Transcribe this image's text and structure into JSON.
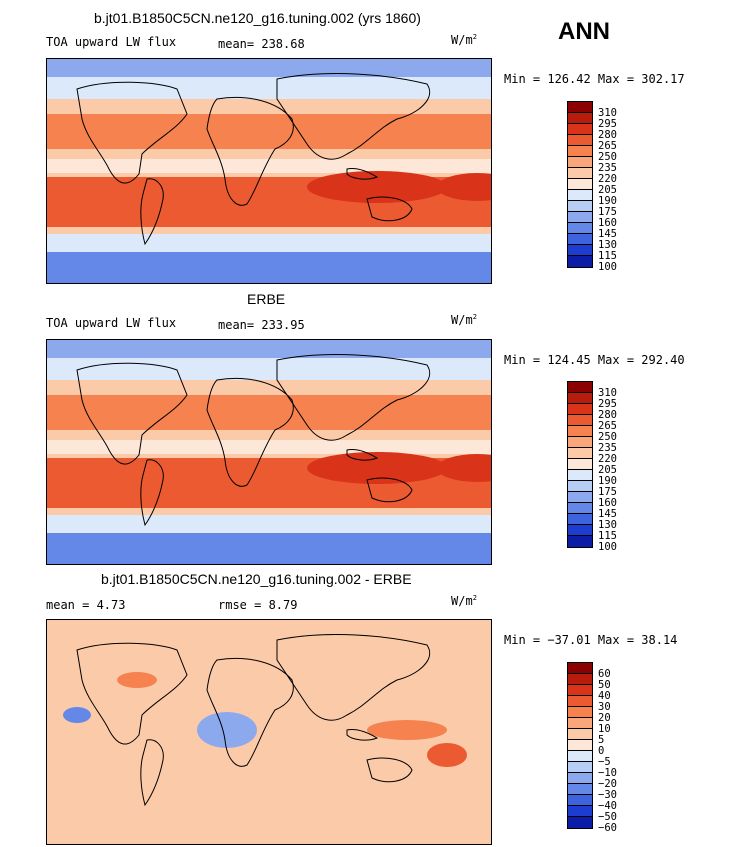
{
  "season": "ANN",
  "panels": [
    {
      "title": "b.jt01.B1850C5CN.ne120_g16.tuning.002 (yrs 1860)",
      "left_text": "TOA upward LW flux",
      "mid_text": "mean= 238.68",
      "units": "W/m",
      "units_sup": "2",
      "minmax": "Min = 126.42 Max = 302.17",
      "levels": [
        "310",
        "295",
        "280",
        "265",
        "250",
        "235",
        "220",
        "205",
        "190",
        "175",
        "160",
        "145",
        "130",
        "115",
        "100"
      ]
    },
    {
      "title": "ERBE",
      "left_text": "TOA upward LW flux",
      "mid_text": "mean= 233.95",
      "units": "W/m",
      "units_sup": "2",
      "minmax": "Min = 124.45 Max = 292.40",
      "levels": [
        "310",
        "295",
        "280",
        "265",
        "250",
        "235",
        "220",
        "205",
        "190",
        "175",
        "160",
        "145",
        "130",
        "115",
        "100"
      ]
    },
    {
      "title": "b.jt01.B1850C5CN.ne120_g16.tuning.002 - ERBE",
      "left_text": "mean =   4.73",
      "mid_text": "rmse =   8.79",
      "units": "W/m",
      "units_sup": "2",
      "minmax": "Min = −37.01 Max =  38.14",
      "levels": [
        "60",
        "50",
        "40",
        "30",
        "20",
        "10",
        "5",
        "0",
        "−5",
        "−10",
        "−20",
        "−30",
        "−40",
        "−50",
        "−60"
      ]
    }
  ],
  "colors": {
    "scale": [
      "#8b0000",
      "#b81c0c",
      "#d9341a",
      "#ec5a32",
      "#f5824f",
      "#f9a77a",
      "#fbcaa8",
      "#fde7d8",
      "#dce9fb",
      "#b6cdf5",
      "#8ca9ee",
      "#6488e8",
      "#3e63df",
      "#1d3cd0",
      "#0b1ca6"
    ],
    "ocean_mid": "#fbcaa8",
    "ocean_subtropic": "#ec5a32",
    "polar": "#6488e8"
  }
}
